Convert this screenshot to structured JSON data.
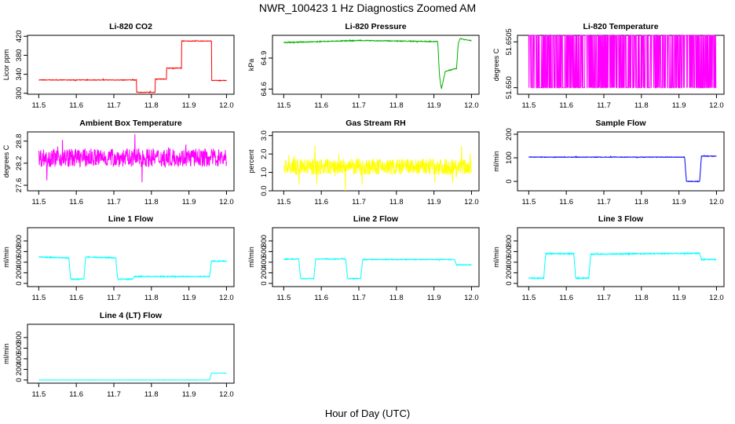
{
  "figure": {
    "title": "NWR_100423  1 Hz Diagnostics Zoomed AM",
    "xlabel": "Hour of Day (UTC)"
  },
  "chart_data": [
    {
      "type": "line",
      "title": "Li-820 CO2",
      "ylabel": "Licor ppm",
      "color": "#ff0000",
      "xlim": [
        11.47,
        12.02
      ],
      "ylim": [
        298,
        422
      ],
      "xticks": [
        "11.5",
        "11.6",
        "11.7",
        "11.8",
        "11.9",
        "12.0"
      ],
      "yticks": [
        {
          "v": 300,
          "label": "300"
        },
        {
          "v": 340,
          "label": "340"
        },
        {
          "v": 380,
          "label": "380"
        },
        {
          "v": 420,
          "label": "420"
        }
      ],
      "x": [
        11.5,
        11.76,
        11.76,
        11.81,
        11.81,
        11.84,
        11.84,
        11.88,
        11.88,
        11.96,
        11.96,
        12.0
      ],
      "y": [
        328,
        328,
        302,
        302,
        330,
        330,
        353,
        353,
        410,
        410,
        327,
        327
      ],
      "noise": 0.6,
      "spiky": false
    },
    {
      "type": "line",
      "title": "Li-820 Pressure",
      "ylabel": "kPa",
      "color": "#00b000",
      "xlim": [
        11.47,
        12.02
      ],
      "ylim": [
        64.55,
        65.12
      ],
      "xticks": [
        "11.5",
        "11.6",
        "11.7",
        "11.8",
        "11.9",
        "12.0"
      ],
      "yticks": [
        {
          "v": 64.6,
          "label": "64.6"
        },
        {
          "v": 64.9,
          "label": "64.9"
        }
      ],
      "x": [
        11.5,
        11.7,
        11.91,
        11.915,
        11.92,
        11.93,
        11.96,
        11.965,
        11.97,
        11.98,
        12.0
      ],
      "y": [
        65.05,
        65.07,
        65.06,
        64.72,
        64.6,
        64.77,
        64.8,
        65.05,
        65.09,
        65.08,
        65.07
      ],
      "noise": 0.004,
      "spiky": false
    },
    {
      "type": "line",
      "title": "Li-820 Temperature",
      "ylabel": "degrees C",
      "color": "#ff00ff",
      "xlim": [
        11.47,
        12.02
      ],
      "ylim": [
        51.6497,
        51.6506
      ],
      "xticks": [
        "11.5",
        "11.6",
        "11.7",
        "11.8",
        "11.9",
        "12.0"
      ],
      "yticks": [
        {
          "v": 51.6498,
          "label": "51.650"
        },
        {
          "v": 51.6505,
          "label": "51.6505"
        }
      ],
      "x": [
        11.5,
        12.0
      ],
      "y": [
        51.6498,
        51.6498
      ],
      "noise": 0,
      "spiky": true,
      "spike_top": 51.6506,
      "spike_bottom": 51.6498
    },
    {
      "type": "line",
      "title": "Ambient Box Temperature",
      "ylabel": "degrees C",
      "color": "#ff00ff",
      "xlim": [
        11.47,
        12.02
      ],
      "ylim": [
        27.45,
        29.05
      ],
      "xticks": [
        "11.5",
        "11.6",
        "11.7",
        "11.8",
        "11.9",
        "12.0"
      ],
      "yticks": [
        {
          "v": 27.6,
          "label": "27.6"
        },
        {
          "v": 28.2,
          "label": "28.2"
        },
        {
          "v": 28.8,
          "label": "28.8"
        }
      ],
      "x": [
        11.5,
        12.0
      ],
      "y": [
        28.35,
        28.35
      ],
      "noise": 0.25,
      "spiky": false
    },
    {
      "type": "line",
      "title": "Gas Stream RH",
      "ylabel": "percent",
      "color": "#ffff00",
      "xlim": [
        11.47,
        12.02
      ],
      "ylim": [
        0,
        3.2
      ],
      "xticks": [
        "11.5",
        "11.6",
        "11.7",
        "11.8",
        "11.9",
        "12.0"
      ],
      "yticks": [
        {
          "v": 0,
          "label": "0.0"
        },
        {
          "v": 1,
          "label": "1.0"
        },
        {
          "v": 2,
          "label": "2.0"
        },
        {
          "v": 3,
          "label": "3.0"
        }
      ],
      "x": [
        11.5,
        12.0
      ],
      "y": [
        1.3,
        1.3
      ],
      "noise": 0.45,
      "spiky": false
    },
    {
      "type": "line",
      "title": "Sample Flow",
      "ylabel": "ml/min",
      "color": "#0000ff",
      "xlim": [
        11.47,
        12.02
      ],
      "ylim": [
        -40,
        210
      ],
      "xticks": [
        "11.5",
        "11.6",
        "11.7",
        "11.8",
        "11.9",
        "12.0"
      ],
      "yticks": [
        {
          "v": 0,
          "label": "0"
        },
        {
          "v": 100,
          "label": "100"
        },
        {
          "v": 200,
          "label": "200"
        }
      ],
      "x": [
        11.5,
        11.915,
        11.92,
        11.955,
        11.96,
        12.0
      ],
      "y": [
        103,
        103,
        0,
        0,
        107,
        107
      ],
      "noise": 1.2,
      "spiky": false
    },
    {
      "type": "line",
      "title": "Line 1 Flow",
      "ylabel": "ml/min",
      "color": "#00ffff",
      "xlim": [
        11.47,
        12.02
      ],
      "ylim": [
        -60,
        1050
      ],
      "xticks": [
        "11.5",
        "11.6",
        "11.7",
        "11.8",
        "11.9",
        "12.0"
      ],
      "yticks": [
        {
          "v": 0,
          "label": "0"
        },
        {
          "v": 200,
          "label": "200"
        },
        {
          "v": 400,
          "label": "400"
        },
        {
          "v": 600,
          "label": "600"
        },
        {
          "v": 800,
          "label": "800"
        }
      ],
      "x": [
        11.5,
        11.58,
        11.585,
        11.62,
        11.625,
        11.705,
        11.71,
        11.75,
        11.755,
        11.955,
        11.96,
        12.0
      ],
      "y": [
        500,
        480,
        80,
        80,
        500,
        480,
        80,
        80,
        130,
        130,
        420,
        420
      ],
      "noise": 8,
      "spiky": false
    },
    {
      "type": "line",
      "title": "Line 2 Flow",
      "ylabel": "ml/min",
      "color": "#00ffff",
      "xlim": [
        11.47,
        12.02
      ],
      "ylim": [
        -60,
        1050
      ],
      "xticks": [
        "11.5",
        "11.6",
        "11.7",
        "11.8",
        "11.9",
        "12.0"
      ],
      "yticks": [
        {
          "v": 0,
          "label": "0"
        },
        {
          "v": 200,
          "label": "200"
        },
        {
          "v": 400,
          "label": "400"
        },
        {
          "v": 600,
          "label": "600"
        },
        {
          "v": 800,
          "label": "800"
        }
      ],
      "x": [
        11.5,
        11.54,
        11.545,
        11.58,
        11.585,
        11.665,
        11.67,
        11.705,
        11.71,
        11.955,
        11.96,
        12.0
      ],
      "y": [
        460,
        460,
        90,
        90,
        460,
        460,
        90,
        90,
        450,
        450,
        350,
        350
      ],
      "noise": 8,
      "spiky": false
    },
    {
      "type": "line",
      "title": "Line 3 Flow",
      "ylabel": "ml/min",
      "color": "#00ffff",
      "xlim": [
        11.47,
        12.02
      ],
      "ylim": [
        -60,
        1050
      ],
      "xticks": [
        "11.5",
        "11.6",
        "11.7",
        "11.8",
        "11.9",
        "12.0"
      ],
      "yticks": [
        {
          "v": 0,
          "label": "0"
        },
        {
          "v": 200,
          "label": "200"
        },
        {
          "v": 400,
          "label": "400"
        },
        {
          "v": 600,
          "label": "600"
        },
        {
          "v": 800,
          "label": "800"
        }
      ],
      "x": [
        11.5,
        11.54,
        11.545,
        11.62,
        11.625,
        11.66,
        11.665,
        11.955,
        11.96,
        12.0
      ],
      "y": [
        100,
        100,
        560,
        560,
        100,
        100,
        550,
        570,
        450,
        450
      ],
      "noise": 10,
      "spiky": false
    },
    {
      "type": "line",
      "title": "Line 4 (LT) Flow",
      "ylabel": "ml/min",
      "color": "#00ffff",
      "xlim": [
        11.47,
        12.02
      ],
      "ylim": [
        -60,
        1050
      ],
      "xticks": [
        "11.5",
        "11.6",
        "11.7",
        "11.8",
        "11.9",
        "12.0"
      ],
      "yticks": [
        {
          "v": 0,
          "label": "0"
        },
        {
          "v": 200,
          "label": "200"
        },
        {
          "v": 400,
          "label": "400"
        },
        {
          "v": 600,
          "label": "600"
        },
        {
          "v": 800,
          "label": "800"
        }
      ],
      "x": [
        11.5,
        11.955,
        11.96,
        12.0
      ],
      "y": [
        0,
        0,
        130,
        130
      ],
      "noise": 2,
      "spiky": false
    }
  ]
}
